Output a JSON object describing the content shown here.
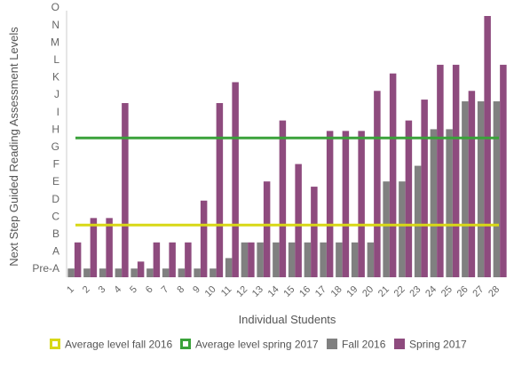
{
  "chart_data": {
    "type": "bar",
    "xlabel": "Individual Students",
    "ylabel": "Next Step Guided Reading Assessment Levels",
    "y_levels": [
      "Pre-A",
      "A",
      "B",
      "C",
      "D",
      "E",
      "F",
      "G",
      "H",
      "I",
      "J",
      "K",
      "L",
      "M",
      "N",
      "O"
    ],
    "ylim": [
      -0.5,
      14.5
    ],
    "categories": [
      "1",
      "2",
      "3",
      "4",
      "5",
      "6",
      "7",
      "8",
      "9",
      "10",
      "11",
      "12",
      "13",
      "14",
      "15",
      "16",
      "17",
      "18",
      "19",
      "20",
      "21",
      "22",
      "23",
      "24",
      "25",
      "26",
      "27",
      "28"
    ],
    "series": [
      {
        "name": "Fall 2016",
        "color": "#808080",
        "values": [
          0,
          0,
          0,
          0,
          0,
          0,
          0,
          0,
          0,
          0,
          0.6,
          1.5,
          1.5,
          1.5,
          1.5,
          1.5,
          1.5,
          1.5,
          1.5,
          1.5,
          5.0,
          5.0,
          5.9,
          8.0,
          8.0,
          9.6,
          9.6,
          9.6
        ]
      },
      {
        "name": "Spring 2017",
        "color": "#8e4b7e",
        "values": [
          1.5,
          2.9,
          2.9,
          9.5,
          0.4,
          1.5,
          1.5,
          1.5,
          3.9,
          9.5,
          10.7,
          1.5,
          5.0,
          8.5,
          6.0,
          4.7,
          7.9,
          7.9,
          7.9,
          10.2,
          11.2,
          8.5,
          9.7,
          11.7,
          11.7,
          10.2,
          14.5,
          11.7
        ]
      }
    ],
    "reference_lines": [
      {
        "name": "Average level fall 2016",
        "value": 2.5,
        "color": "#d8d816"
      },
      {
        "name": "Average level spring 2017",
        "value": 7.5,
        "color": "#3aa23a"
      }
    ],
    "grid": false,
    "legend_position": "bottom"
  }
}
